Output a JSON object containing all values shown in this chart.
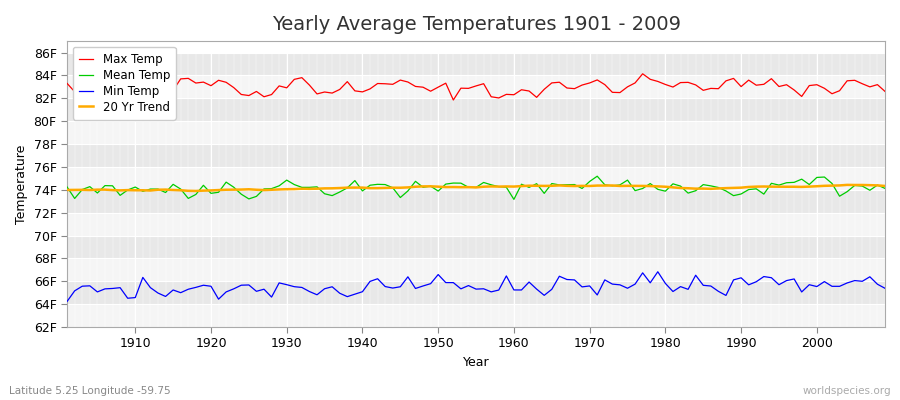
{
  "title": "Yearly Average Temperatures 1901 - 2009",
  "xlabel": "Year",
  "ylabel": "Temperature",
  "subtitle_left": "Latitude 5.25 Longitude -59.75",
  "subtitle_right": "worldspecies.org",
  "ylim": [
    62,
    87
  ],
  "yticks": [
    62,
    64,
    66,
    68,
    70,
    72,
    74,
    76,
    78,
    80,
    82,
    84,
    86
  ],
  "ytick_labels": [
    "62F",
    "64F",
    "66F",
    "68F",
    "70F",
    "72F",
    "74F",
    "76F",
    "78F",
    "80F",
    "82F",
    "84F",
    "86F"
  ],
  "xlim": [
    1901,
    2009
  ],
  "xticks": [
    1910,
    1920,
    1930,
    1940,
    1950,
    1960,
    1970,
    1980,
    1990,
    2000
  ],
  "fig_bg_color": "#ffffff",
  "band_light_color": "#f5f5f5",
  "band_dark_color": "#e8e8e8",
  "grid_color": "#ffffff",
  "max_temp_color": "#ff0000",
  "mean_temp_color": "#00cc00",
  "min_temp_color": "#0000ff",
  "trend_color": "#ffaa00",
  "legend_labels": [
    "Max Temp",
    "Mean Temp",
    "Min Temp",
    "20 Yr Trend"
  ],
  "title_fontsize": 14,
  "label_fontsize": 9,
  "tick_fontsize": 9,
  "max_temp_seed": 10,
  "mean_temp_seed": 20,
  "min_temp_seed": 30
}
